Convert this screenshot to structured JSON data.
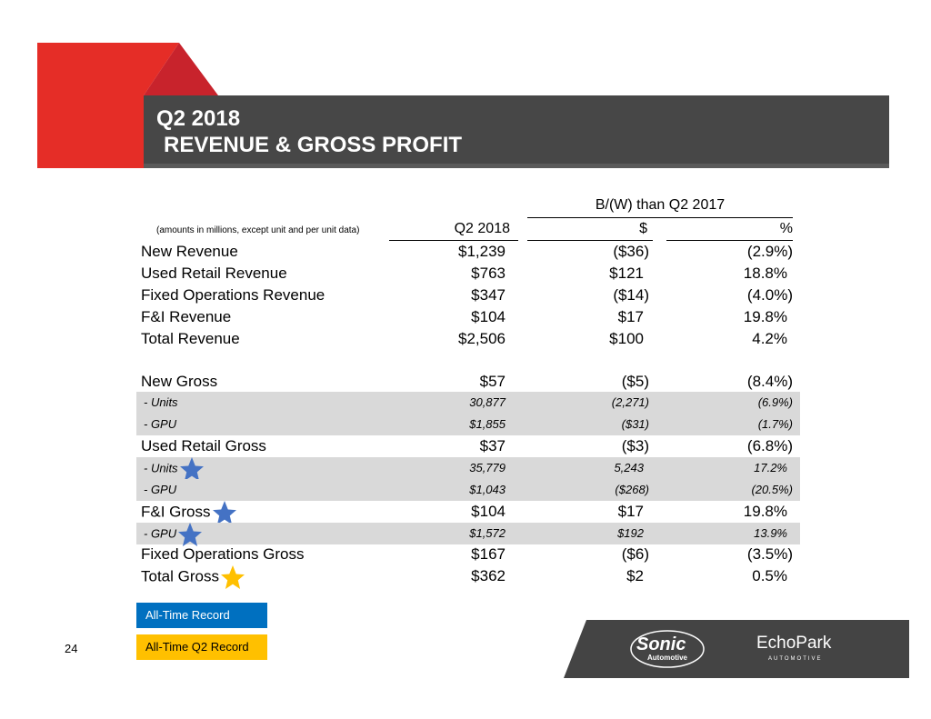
{
  "header": {
    "title_line1": "Q2 2018",
    "title_line2": "REVENUE & GROSS PROFIT"
  },
  "table": {
    "group_header": "B/(W) than Q2 2017",
    "note": "(amounts in millions, except unit and per unit data)",
    "columns": [
      "Q2 2018",
      "$",
      "%"
    ],
    "rows": [
      {
        "label": "New Revenue",
        "values": [
          "$1,239",
          "($36)",
          "(2.9%)"
        ],
        "sub": false,
        "shade": false
      },
      {
        "label": "Used Retail Revenue",
        "values": [
          "$763",
          "$121",
          "18.8%"
        ],
        "sub": false,
        "shade": false
      },
      {
        "label": "Fixed Operations Revenue",
        "values": [
          "$347",
          "($14)",
          "(4.0%)"
        ],
        "sub": false,
        "shade": false
      },
      {
        "label": "F&I Revenue",
        "values": [
          "$104",
          "$17",
          "19.8%"
        ],
        "sub": false,
        "shade": false
      },
      {
        "label": "Total Revenue",
        "values": [
          "$2,506",
          "$100",
          "4.2%"
        ],
        "sub": false,
        "shade": false
      },
      {
        "label": "New Gross",
        "values": [
          "$57",
          "($5)",
          "(8.4%)"
        ],
        "sub": false,
        "shade": false
      },
      {
        "label": "- Units",
        "values": [
          "30,877",
          "(2,271)",
          "(6.9%)"
        ],
        "sub": true,
        "shade": true
      },
      {
        "label": "- GPU",
        "values": [
          "$1,855",
          "($31)",
          "(1.7%)"
        ],
        "sub": true,
        "shade": true
      },
      {
        "label": "Used Retail Gross",
        "values": [
          "$37",
          "($3)",
          "(6.8%)"
        ],
        "sub": false,
        "shade": false
      },
      {
        "label": "- Units",
        "values": [
          "35,779",
          "5,243",
          "17.2%"
        ],
        "sub": true,
        "shade": true,
        "star": "blue"
      },
      {
        "label": "- GPU",
        "values": [
          "$1,043",
          "($268)",
          "(20.5%)"
        ],
        "sub": true,
        "shade": true
      },
      {
        "label": "F&I Gross",
        "values": [
          "$104",
          "$17",
          "19.8%"
        ],
        "sub": false,
        "shade": false,
        "star": "blue"
      },
      {
        "label": "- GPU",
        "values": [
          "$1,572",
          "$192",
          "13.9%"
        ],
        "sub": true,
        "shade": true,
        "star": "blue"
      },
      {
        "label": "Fixed Operations Gross",
        "values": [
          "$167",
          "($6)",
          "(3.5%)"
        ],
        "sub": false,
        "shade": false
      },
      {
        "label": "Total Gross",
        "values": [
          "$362",
          "$2",
          "0.5%"
        ],
        "sub": false,
        "shade": false,
        "star": "gold"
      }
    ]
  },
  "legend": {
    "all_time": "All-Time Record",
    "all_time_q2": "All-Time Q2 Record"
  },
  "page_number": "24",
  "logos": {
    "sonic": "Sonic",
    "sonic_sub": "Automotive",
    "echopark": "EchoPark",
    "echopark_sub": "AUTOMOTIVE"
  },
  "colors": {
    "blue_star": "#4472c4",
    "gold_star": "#ffc000",
    "legend_blue": "#0070c0",
    "legend_gold": "#ffc000",
    "red": "#e52d27",
    "banner": "#444444"
  }
}
